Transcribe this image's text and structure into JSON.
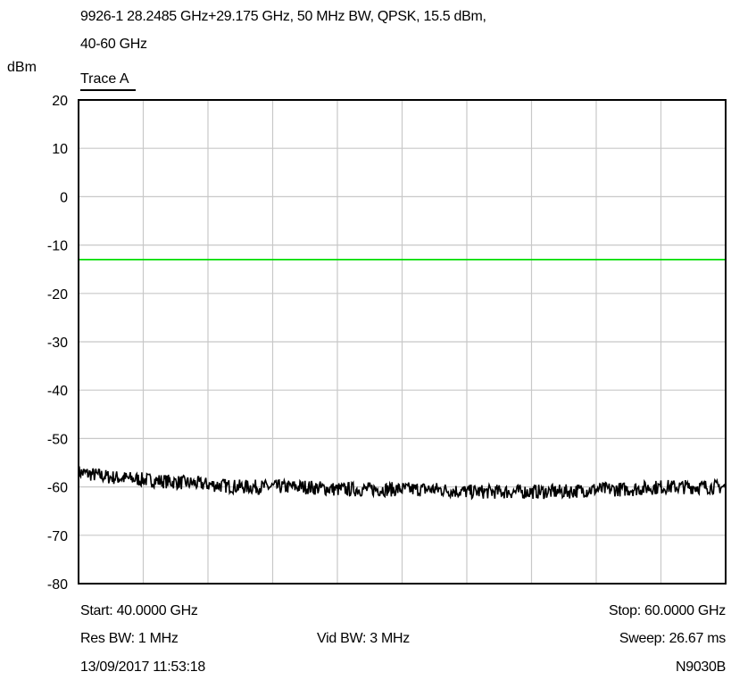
{
  "header": {
    "title_line1": "9926-1 28.2485 GHz+29.175 GHz, 50 MHz BW, QPSK, 15.5 dBm,",
    "title_line2": "40-60 GHz"
  },
  "footer": {
    "start": "Start: 40.0000 GHz",
    "stop": "Stop: 60.0000 GHz",
    "res_bw": "Res BW: 1 MHz",
    "vid_bw": "Vid BW: 3 MHz",
    "sweep": "Sweep: 26.67 ms",
    "timestamp": "13/09/2017 11:53:18",
    "instrument": "N9030B"
  },
  "chart_data": {
    "type": "line",
    "title": "9926-1 28.2485 GHz+29.175 GHz, 50 MHz BW, QPSK, 15.5 dBm, 40-60 GHz",
    "ylabel": "dBm",
    "xlabel": "",
    "legend": [
      "Trace A"
    ],
    "xlim": [
      40,
      60
    ],
    "ylim": [
      -80,
      20
    ],
    "yticks": [
      20,
      10,
      0,
      -10,
      -20,
      -30,
      -40,
      -50,
      -60,
      -70,
      -80
    ],
    "x_divisions": 10,
    "grid": true,
    "series": [
      {
        "name": "Trace A",
        "color": "#000000",
        "x": [
          40,
          41,
          42,
          43,
          44,
          45,
          46,
          47,
          48,
          49,
          50,
          51,
          52,
          53,
          54,
          55,
          56,
          57,
          58,
          59,
          60
        ],
        "y": [
          -57,
          -58,
          -58.5,
          -59,
          -59.5,
          -60,
          -60,
          -60,
          -60.5,
          -60.5,
          -60.5,
          -60.5,
          -61,
          -61,
          -61,
          -61,
          -60.5,
          -60.5,
          -60,
          -60,
          -60
        ],
        "noise_span": 3
      },
      {
        "name": "Limit line",
        "color": "#00dd00",
        "x": [
          40,
          60
        ],
        "y": [
          -13,
          -13
        ]
      }
    ]
  }
}
